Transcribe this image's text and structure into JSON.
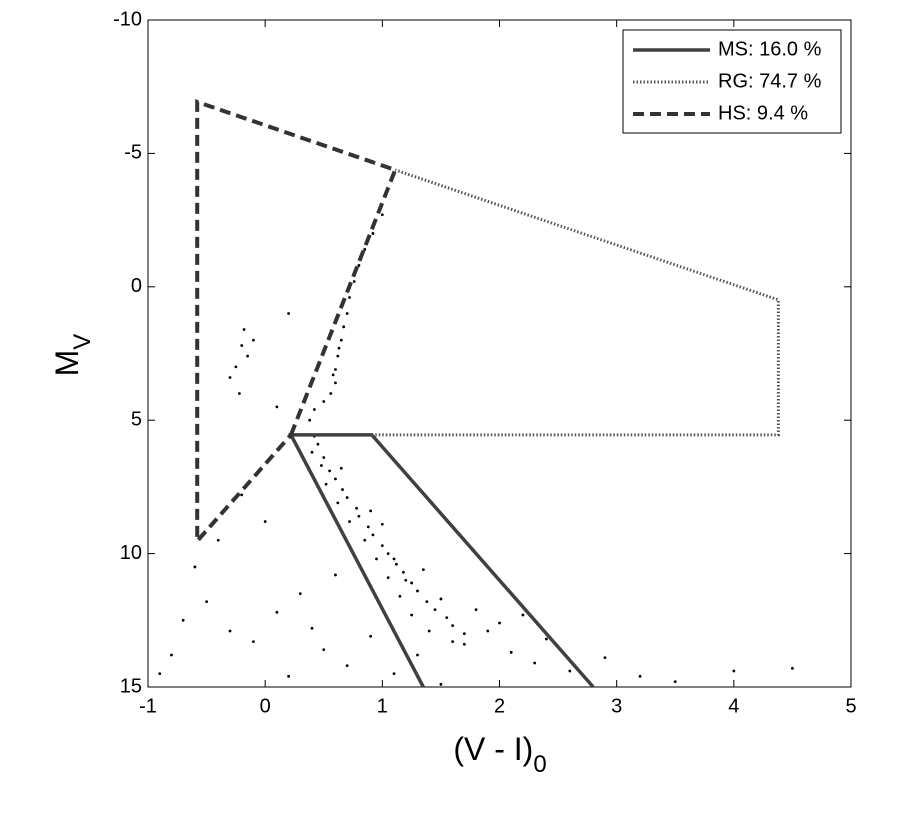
{
  "chart_data": {
    "type": "scatter",
    "xlabel": {
      "text": "(V - I)",
      "subscript": "0"
    },
    "ylabel": {
      "text": "M",
      "subscript": "V"
    },
    "xlim": [
      -1,
      5
    ],
    "xticks": [
      -1,
      0,
      1,
      2,
      3,
      4,
      5
    ],
    "ylim": [
      15,
      -10
    ],
    "yticks": [
      -10,
      -5,
      0,
      5,
      10,
      15
    ],
    "legend": "upper right",
    "points": {
      "color": "#000000",
      "x": [
        0.42,
        0.45,
        0.4,
        0.5,
        0.48,
        0.55,
        0.6,
        0.52,
        0.66,
        0.7,
        0.62,
        0.78,
        0.8,
        0.72,
        0.88,
        0.92,
        0.85,
        1.0,
        1.05,
        0.95,
        1.12,
        1.18,
        1.05,
        1.25,
        1.3,
        1.15,
        1.38,
        1.45,
        1.25,
        1.55,
        1.6,
        1.4,
        1.7,
        1.2,
        1.35,
        0.9,
        1.0,
        0.65,
        1.5,
        1.1,
        0.38,
        0.42,
        0.5,
        0.56,
        0.6,
        0.6,
        0.62,
        0.65,
        0.67,
        0.7,
        0.72,
        0.76,
        0.8,
        0.85,
        0.92,
        1.0,
        0.58,
        0.63,
        -0.2,
        -0.15,
        -0.25,
        -0.1,
        -0.18,
        -0.3,
        -0.22,
        0.1,
        0.2,
        -0.7,
        -0.5,
        -0.3,
        -0.1,
        0.1,
        0.3,
        0.5,
        0.7,
        0.9,
        1.1,
        1.3,
        1.5,
        1.7,
        1.9,
        2.1,
        2.3,
        2.6,
        2.9,
        3.2,
        3.5,
        4.0,
        4.5,
        -0.6,
        -0.4,
        -0.2,
        0.0,
        0.2,
        0.6,
        1.8,
        2.0,
        2.2,
        1.6,
        2.4,
        -0.8,
        0.4,
        -0.9
      ],
      "y": [
        5.6,
        5.9,
        6.2,
        6.4,
        6.7,
        6.9,
        7.2,
        7.4,
        7.6,
        7.9,
        8.1,
        8.3,
        8.6,
        8.8,
        9.0,
        9.3,
        9.5,
        9.7,
        10.0,
        10.2,
        10.4,
        10.7,
        10.9,
        11.1,
        11.4,
        11.6,
        11.8,
        12.1,
        12.3,
        12.4,
        12.7,
        12.9,
        13.0,
        11.0,
        10.6,
        8.4,
        8.9,
        6.8,
        11.7,
        10.2,
        5.0,
        4.6,
        4.3,
        4.0,
        3.6,
        3.1,
        2.6,
        2.0,
        1.5,
        1.0,
        0.4,
        -0.2,
        -0.8,
        -1.4,
        -2.0,
        -2.7,
        3.3,
        2.3,
        2.2,
        2.6,
        3.0,
        2.0,
        1.6,
        3.4,
        4.0,
        4.5,
        1.0,
        12.5,
        11.8,
        12.9,
        13.3,
        12.2,
        11.5,
        13.6,
        14.2,
        13.1,
        14.5,
        13.8,
        14.9,
        13.4,
        12.9,
        13.7,
        14.1,
        14.4,
        13.9,
        14.6,
        14.8,
        14.4,
        14.3,
        10.5,
        9.5,
        7.8,
        8.8,
        14.6,
        10.8,
        12.1,
        12.6,
        12.3,
        13.3,
        13.2,
        13.8,
        12.8,
        14.5
      ]
    },
    "series": [
      {
        "name": "MS: 16.0 %",
        "color": "#404040",
        "style": "solid",
        "x": [
          1.35,
          0.22,
          0.91,
          2.8
        ],
        "y": [
          15,
          5.55,
          5.55,
          15
        ]
      },
      {
        "name": "RG: 74.7 %",
        "color": "#555555",
        "style": "dotted",
        "x": [
          0.91,
          4.38,
          4.38,
          1.11
        ],
        "y": [
          5.55,
          5.55,
          0.49,
          -4.38
        ]
      },
      {
        "name": "HS: 9.4 %",
        "color": "#333333",
        "style": "dashed",
        "x": [
          0.22,
          1.11,
          -0.58,
          -0.58,
          0.22
        ],
        "y": [
          5.55,
          -4.38,
          -6.93,
          9.53,
          5.55
        ]
      }
    ]
  }
}
